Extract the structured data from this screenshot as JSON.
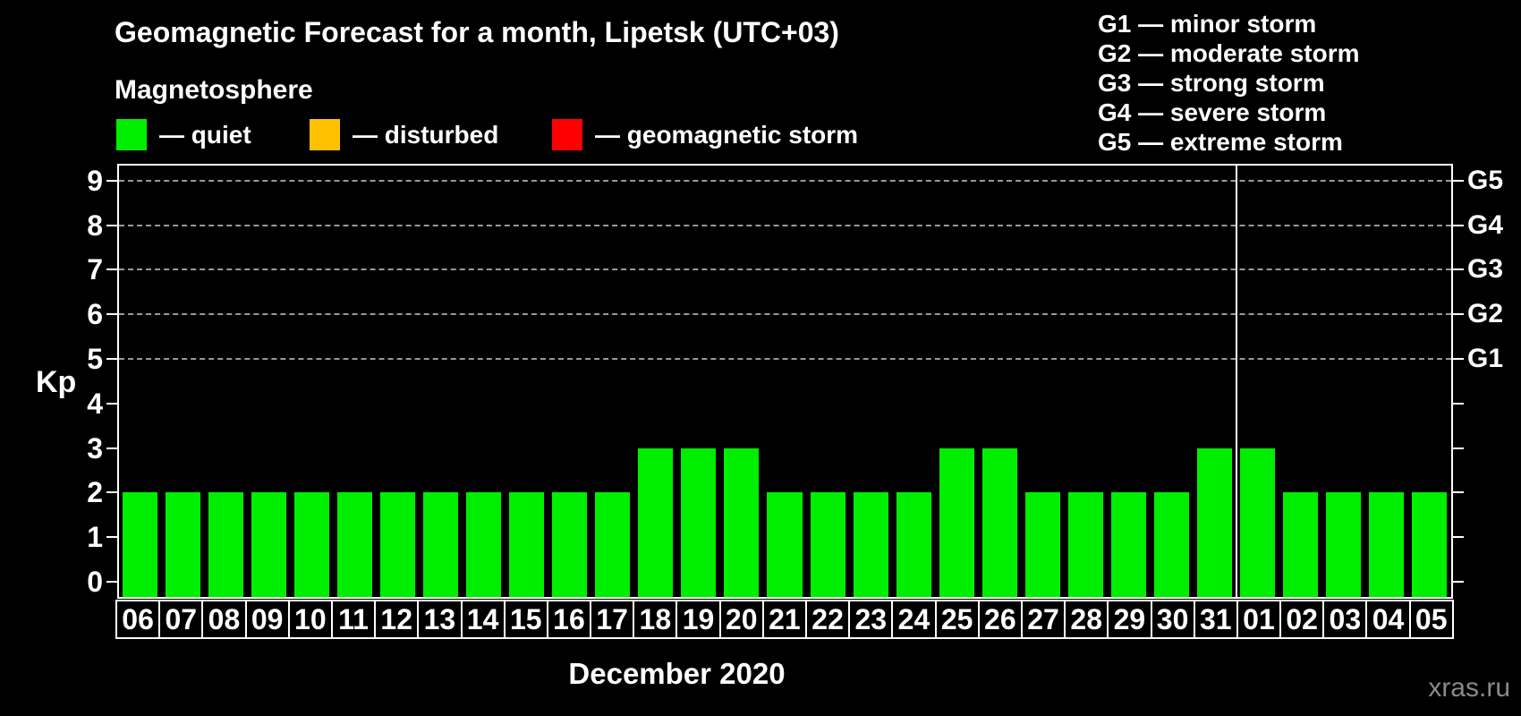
{
  "title": "Geomagnetic Forecast for a month, Lipetsk (UTC+03)",
  "subtitle": "Magnetosphere",
  "legend": [
    {
      "key": "quiet",
      "label": "— quiet",
      "color": "#00ee00"
    },
    {
      "key": "disturbed",
      "label": "— disturbed",
      "color": "#ffc000"
    },
    {
      "key": "storm",
      "label": "— geomagnetic storm",
      "color": "#ff0000"
    }
  ],
  "storm_scale": [
    {
      "key": "G1",
      "label": "G1 — minor storm"
    },
    {
      "key": "G2",
      "label": "G2 — moderate storm"
    },
    {
      "key": "G3",
      "label": "G3 — strong storm"
    },
    {
      "key": "G4",
      "label": "G4 — severe storm"
    },
    {
      "key": "G5",
      "label": "G5 — extreme storm"
    }
  ],
  "chart_data": {
    "type": "bar",
    "categories": [
      "06",
      "07",
      "08",
      "09",
      "10",
      "11",
      "12",
      "13",
      "14",
      "15",
      "16",
      "17",
      "18",
      "19",
      "20",
      "21",
      "22",
      "23",
      "24",
      "25",
      "26",
      "27",
      "28",
      "29",
      "30",
      "31",
      "01",
      "02",
      "03",
      "04",
      "05"
    ],
    "values": [
      2,
      2,
      2,
      2,
      2,
      2,
      2,
      2,
      2,
      2,
      2,
      2,
      3,
      3,
      3,
      2,
      2,
      2,
      2,
      3,
      3,
      2,
      2,
      2,
      2,
      3,
      3,
      2,
      2,
      2,
      2
    ],
    "bar_color": "#00ee00",
    "ylabel": "Kp",
    "xlabel": "December 2020",
    "ylim": [
      0,
      9
    ],
    "yticks": [
      0,
      1,
      2,
      3,
      4,
      5,
      6,
      7,
      8,
      9
    ],
    "gridlines_kp": [
      5,
      6,
      7,
      8,
      9
    ],
    "right_axis": [
      {
        "kp": 5,
        "label": "G1"
      },
      {
        "kp": 6,
        "label": "G2"
      },
      {
        "kp": 7,
        "label": "G3"
      },
      {
        "kp": 8,
        "label": "G4"
      },
      {
        "kp": 9,
        "label": "G5"
      }
    ],
    "month_divider_after_index": 25,
    "grid": "dashed horizontal lines at Kp 5-9",
    "legend_position": "top-left"
  },
  "watermark": "xras.ru"
}
